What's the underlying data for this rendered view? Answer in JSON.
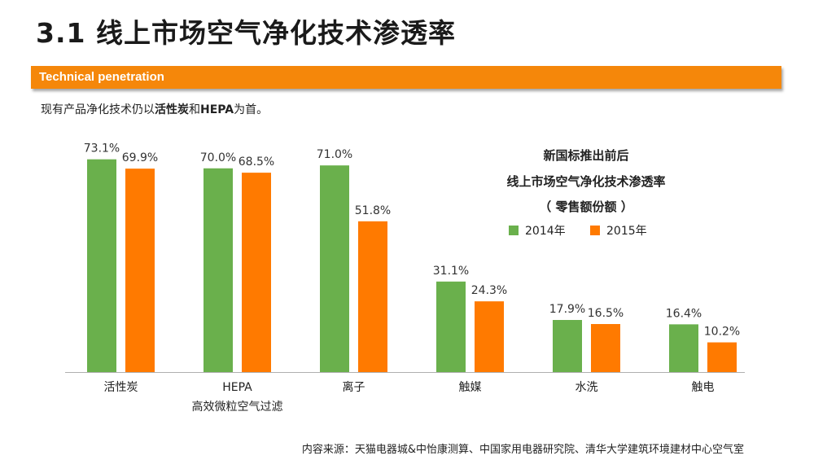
{
  "header": {
    "title": "3.1 线上市场空气净化技术渗透率",
    "banner": "Technical penetration"
  },
  "subtitle": {
    "prefix": "现有产品净化技术仍以",
    "strong1": "活性炭",
    "middle": "和",
    "strong2": "HEPA",
    "suffix": "为首。"
  },
  "chart_title": {
    "line1": "新国标推出前后",
    "line2": "线上市场空气净化技术渗透率",
    "line3": "（ 零售额份额 ）"
  },
  "source_note": "内容来源：天猫电器城&中怡康测算、中国家用电器研究院、清华大学建筑环境建材中心空气室",
  "colors": {
    "accent": "#f5870a",
    "series2014": "#6ab04c",
    "series2015": "#ff7a00"
  },
  "chart_data": {
    "type": "bar",
    "categories": [
      "活性炭",
      "HEPA",
      "离子",
      "触媒",
      "水洗",
      "触电"
    ],
    "category_sublabels": [
      "",
      "高效微粒空气过滤",
      "",
      "",
      "",
      ""
    ],
    "series": [
      {
        "name": "2014年",
        "values": [
          73.1,
          70.0,
          71.0,
          31.1,
          17.9,
          16.4
        ]
      },
      {
        "name": "2015年",
        "values": [
          69.9,
          68.5,
          51.8,
          24.3,
          16.5,
          10.2
        ]
      }
    ],
    "data_labels": [
      [
        "73.1%",
        "70.0%",
        "71.0%",
        "31.1%",
        "17.9%",
        "16.4%"
      ],
      [
        "69.9%",
        "68.5%",
        "51.8%",
        "24.3%",
        "16.5%",
        "10.2%"
      ]
    ],
    "title": "",
    "xlabel": "",
    "ylabel": "",
    "ylim": [
      0,
      80
    ],
    "grid": false,
    "legend_position": "top-right"
  }
}
